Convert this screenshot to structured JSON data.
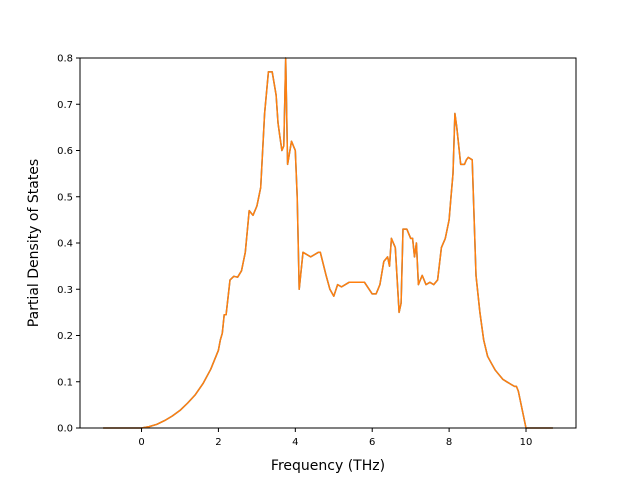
{
  "chart_data": {
    "type": "line",
    "title": "",
    "xlabel": "Frequency (THz)",
    "ylabel": "Partial Density of States",
    "xlim": [
      -1.6,
      11.3
    ],
    "ylim": [
      0.0,
      0.8
    ],
    "xticks": [
      0,
      2,
      4,
      6,
      8,
      10
    ],
    "yticks": [
      0.0,
      0.1,
      0.2,
      0.3,
      0.4,
      0.5,
      0.6,
      0.7,
      0.8
    ],
    "xtick_labels": [
      "0",
      "2",
      "4",
      "6",
      "8",
      "10"
    ],
    "ytick_labels": [
      "0.0",
      "0.1",
      "0.2",
      "0.3",
      "0.4",
      "0.5",
      "0.6",
      "0.7",
      "0.8"
    ],
    "grid": false,
    "series": [
      {
        "color": "#1f77b4",
        "x": [
          -1.0,
          0.0,
          0.2,
          0.4,
          0.6,
          0.8,
          1.0,
          1.2,
          1.4,
          1.6,
          1.8,
          2.0,
          2.05,
          2.1,
          2.15,
          2.2,
          2.3,
          2.4,
          2.5,
          2.6,
          2.65,
          2.7,
          2.8,
          2.9,
          3.0,
          3.05,
          3.1,
          3.2,
          3.3,
          3.4,
          3.5,
          3.55,
          3.6,
          3.65,
          3.7,
          3.75,
          3.8,
          3.9,
          4.0,
          4.05,
          4.1,
          4.2,
          4.4,
          4.6,
          4.65,
          4.8,
          4.9,
          5.0,
          5.1,
          5.2,
          5.4,
          5.5,
          5.6,
          5.8,
          6.0,
          6.1,
          6.15,
          6.2,
          6.3,
          6.4,
          6.45,
          6.5,
          6.6,
          6.7,
          6.75,
          6.8,
          6.9,
          7.0,
          7.05,
          7.1,
          7.15,
          7.2,
          7.3,
          7.4,
          7.5,
          7.6,
          7.7,
          7.8,
          7.9,
          8.0,
          8.05,
          8.1,
          8.15,
          8.2,
          8.3,
          8.4,
          8.45,
          8.5,
          8.6,
          8.7,
          8.8,
          8.9,
          9.0,
          9.1,
          9.2,
          9.3,
          9.4,
          9.5,
          9.6,
          9.7,
          9.75,
          9.8,
          10.0,
          10.7
        ],
        "y": [
          0.0,
          0.0,
          0.003,
          0.008,
          0.016,
          0.026,
          0.038,
          0.054,
          0.072,
          0.096,
          0.127,
          0.168,
          0.19,
          0.205,
          0.245,
          0.245,
          0.32,
          0.328,
          0.326,
          0.34,
          0.36,
          0.38,
          0.47,
          0.46,
          0.48,
          0.5,
          0.52,
          0.68,
          0.77,
          0.77,
          0.72,
          0.66,
          0.63,
          0.6,
          0.61,
          0.8,
          0.57,
          0.62,
          0.6,
          0.5,
          0.3,
          0.38,
          0.37,
          0.38,
          0.38,
          0.33,
          0.3,
          0.285,
          0.31,
          0.305,
          0.315,
          0.315,
          0.315,
          0.315,
          0.29,
          0.29,
          0.3,
          0.31,
          0.36,
          0.37,
          0.35,
          0.41,
          0.39,
          0.25,
          0.27,
          0.43,
          0.43,
          0.41,
          0.41,
          0.37,
          0.4,
          0.31,
          0.33,
          0.31,
          0.315,
          0.31,
          0.32,
          0.39,
          0.41,
          0.45,
          0.5,
          0.55,
          0.68,
          0.65,
          0.57,
          0.57,
          0.58,
          0.585,
          0.58,
          0.33,
          0.25,
          0.19,
          0.155,
          0.14,
          0.125,
          0.115,
          0.105,
          0.1,
          0.095,
          0.09,
          0.09,
          0.08,
          0.0,
          0.0
        ]
      },
      {
        "color": "#ff7f0e",
        "x": [
          -1.0,
          0.0,
          0.2,
          0.4,
          0.6,
          0.8,
          1.0,
          1.2,
          1.4,
          1.6,
          1.8,
          2.0,
          2.05,
          2.1,
          2.15,
          2.2,
          2.3,
          2.4,
          2.5,
          2.6,
          2.65,
          2.7,
          2.8,
          2.9,
          3.0,
          3.05,
          3.1,
          3.2,
          3.3,
          3.4,
          3.5,
          3.55,
          3.6,
          3.65,
          3.7,
          3.75,
          3.8,
          3.9,
          4.0,
          4.05,
          4.1,
          4.2,
          4.4,
          4.6,
          4.65,
          4.8,
          4.9,
          5.0,
          5.1,
          5.2,
          5.4,
          5.5,
          5.6,
          5.8,
          6.0,
          6.1,
          6.15,
          6.2,
          6.3,
          6.4,
          6.45,
          6.5,
          6.6,
          6.7,
          6.75,
          6.8,
          6.9,
          7.0,
          7.05,
          7.1,
          7.15,
          7.2,
          7.3,
          7.4,
          7.5,
          7.6,
          7.7,
          7.8,
          7.9,
          8.0,
          8.05,
          8.1,
          8.15,
          8.2,
          8.3,
          8.4,
          8.45,
          8.5,
          8.6,
          8.7,
          8.8,
          8.9,
          9.0,
          9.1,
          9.2,
          9.3,
          9.4,
          9.5,
          9.6,
          9.7,
          9.75,
          9.8,
          10.0,
          10.7
        ],
        "y": [
          0.0,
          0.0,
          0.003,
          0.008,
          0.016,
          0.026,
          0.038,
          0.054,
          0.072,
          0.096,
          0.127,
          0.168,
          0.19,
          0.205,
          0.245,
          0.245,
          0.32,
          0.328,
          0.326,
          0.34,
          0.36,
          0.38,
          0.47,
          0.46,
          0.48,
          0.5,
          0.52,
          0.68,
          0.77,
          0.77,
          0.72,
          0.66,
          0.63,
          0.6,
          0.61,
          0.8,
          0.57,
          0.62,
          0.6,
          0.5,
          0.3,
          0.38,
          0.37,
          0.38,
          0.38,
          0.33,
          0.3,
          0.285,
          0.31,
          0.305,
          0.315,
          0.315,
          0.315,
          0.315,
          0.29,
          0.29,
          0.3,
          0.31,
          0.36,
          0.37,
          0.35,
          0.41,
          0.39,
          0.25,
          0.27,
          0.43,
          0.43,
          0.41,
          0.41,
          0.37,
          0.4,
          0.31,
          0.33,
          0.31,
          0.315,
          0.31,
          0.32,
          0.39,
          0.41,
          0.45,
          0.5,
          0.55,
          0.68,
          0.65,
          0.57,
          0.57,
          0.58,
          0.585,
          0.58,
          0.33,
          0.25,
          0.19,
          0.155,
          0.14,
          0.125,
          0.115,
          0.105,
          0.1,
          0.095,
          0.09,
          0.09,
          0.08,
          0.0,
          0.0
        ]
      }
    ]
  }
}
